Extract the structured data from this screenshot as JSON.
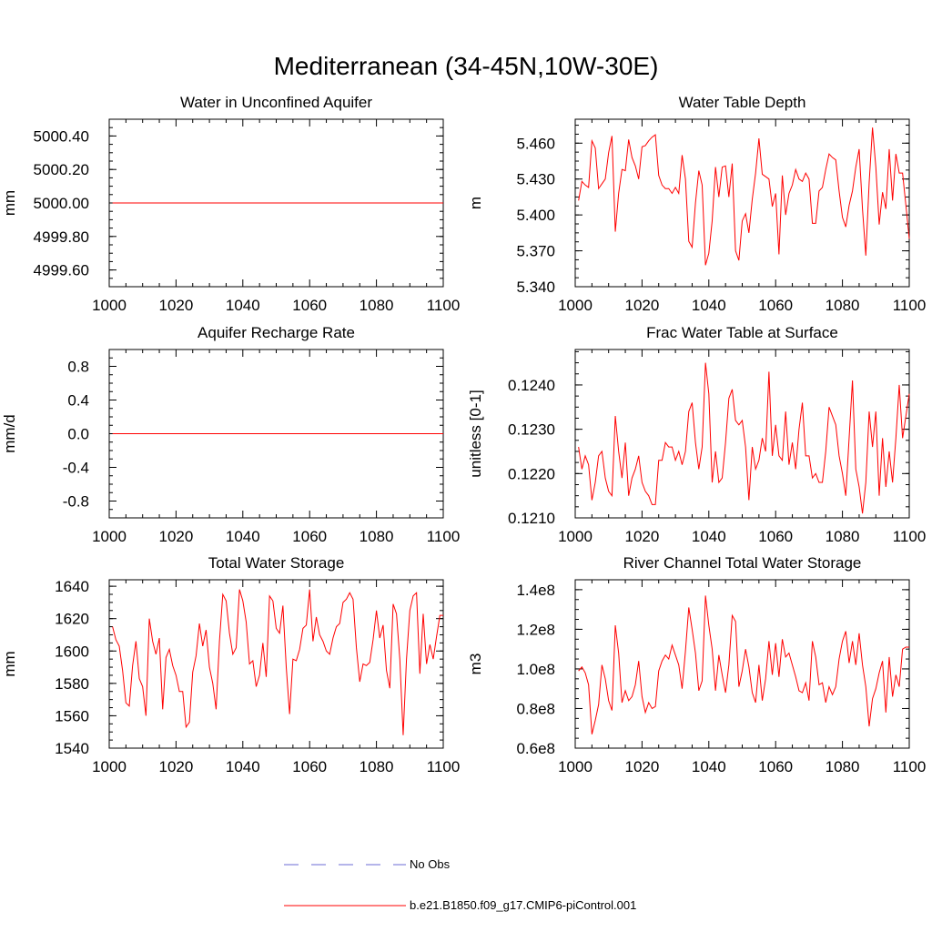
{
  "figure_title": "Mediterranean (34-45N,10W-30E)",
  "legend": {
    "entries": [
      {
        "label": "No Obs",
        "color": "#6b6bd6",
        "style": "dashed"
      },
      {
        "label": "b.e21.B1850.f09_g17.CMIP6-piControl.001",
        "color": "#ff0000",
        "style": "solid"
      }
    ]
  },
  "chart_data": [
    {
      "type": "line",
      "title": "Water in Unconfined Aquifer",
      "ylabel": "mm",
      "xlim": [
        1000,
        1100
      ],
      "ylim": [
        4999.5,
        5000.5
      ],
      "xticks": [
        1000,
        1020,
        1040,
        1060,
        1080,
        1100
      ],
      "yticks": [
        4999.6,
        4999.8,
        5000.0,
        5000.2,
        5000.4
      ],
      "ytick_labels": [
        "4999.60",
        "4999.80",
        "5000.00",
        "5000.20",
        "5000.40"
      ],
      "x_start": 1001,
      "x_step": 1,
      "series": [
        {
          "color": "#ff0000",
          "values": [
            5000,
            5000,
            5000,
            5000,
            5000,
            5000,
            5000,
            5000,
            5000,
            5000,
            5000,
            5000,
            5000,
            5000,
            5000,
            5000,
            5000,
            5000,
            5000,
            5000,
            5000,
            5000,
            5000,
            5000,
            5000,
            5000,
            5000,
            5000,
            5000,
            5000,
            5000,
            5000,
            5000,
            5000,
            5000,
            5000,
            5000,
            5000,
            5000,
            5000,
            5000,
            5000,
            5000,
            5000,
            5000,
            5000,
            5000,
            5000,
            5000,
            5000,
            5000,
            5000,
            5000,
            5000,
            5000,
            5000,
            5000,
            5000,
            5000,
            5000,
            5000,
            5000,
            5000,
            5000,
            5000,
            5000,
            5000,
            5000,
            5000,
            5000,
            5000,
            5000,
            5000,
            5000,
            5000,
            5000,
            5000,
            5000,
            5000,
            5000,
            5000,
            5000,
            5000,
            5000,
            5000,
            5000,
            5000,
            5000,
            5000,
            5000,
            5000,
            5000,
            5000,
            5000,
            5000,
            5000,
            5000,
            5000,
            5000,
            5000
          ]
        }
      ]
    },
    {
      "type": "line",
      "title": "Water Table Depth",
      "ylabel": "m",
      "xlim": [
        1000,
        1100
      ],
      "ylim": [
        5.34,
        5.48
      ],
      "xticks": [
        1000,
        1020,
        1040,
        1060,
        1080,
        1100
      ],
      "yticks": [
        5.34,
        5.37,
        5.4,
        5.43,
        5.46
      ],
      "ytick_labels": [
        "5.340",
        "5.370",
        "5.400",
        "5.430",
        "5.460"
      ],
      "x_start": 1001,
      "x_step": 1,
      "series": [
        {
          "color": "#ff0000",
          "values": [
            5.412,
            5.428,
            5.425,
            5.423,
            5.462,
            5.456,
            5.422,
            5.426,
            5.43,
            5.452,
            5.466,
            5.386,
            5.418,
            5.438,
            5.437,
            5.463,
            5.448,
            5.441,
            5.43,
            5.457,
            5.458,
            5.462,
            5.465,
            5.467,
            5.433,
            5.425,
            5.422,
            5.422,
            5.418,
            5.423,
            5.418,
            5.45,
            5.43,
            5.378,
            5.373,
            5.41,
            5.437,
            5.425,
            5.358,
            5.368,
            5.395,
            5.44,
            5.415,
            5.44,
            5.441,
            5.415,
            5.443,
            5.37,
            5.362,
            5.395,
            5.401,
            5.385,
            5.413,
            5.435,
            5.464,
            5.434,
            5.432,
            5.43,
            5.407,
            5.418,
            5.367,
            5.433,
            5.4,
            5.418,
            5.425,
            5.438,
            5.43,
            5.428,
            5.435,
            5.43,
            5.393,
            5.393,
            5.42,
            5.423,
            5.438,
            5.451,
            5.448,
            5.446,
            5.42,
            5.398,
            5.39,
            5.408,
            5.42,
            5.44,
            5.455,
            5.405,
            5.366,
            5.427,
            5.473,
            5.44,
            5.392,
            5.419,
            5.405,
            5.455,
            5.412,
            5.451,
            5.435,
            5.435,
            5.408,
            5.38
          ]
        }
      ]
    },
    {
      "type": "line",
      "title": "Aquifer Recharge Rate",
      "ylabel": "mm/d",
      "xlim": [
        1000,
        1100
      ],
      "ylim": [
        -1.0,
        1.0
      ],
      "xticks": [
        1000,
        1020,
        1040,
        1060,
        1080,
        1100
      ],
      "yticks": [
        -0.8,
        -0.4,
        0.0,
        0.4,
        0.8
      ],
      "ytick_labels": [
        "-0.8",
        "-0.4",
        "0.0",
        "0.4",
        "0.8"
      ],
      "x_start": 1001,
      "x_step": 1,
      "series": [
        {
          "color": "#ff0000",
          "values": [
            0,
            0,
            0,
            0,
            0,
            0,
            0,
            0,
            0,
            0,
            0,
            0,
            0,
            0,
            0,
            0,
            0,
            0,
            0,
            0,
            0,
            0,
            0,
            0,
            0,
            0,
            0,
            0,
            0,
            0,
            0,
            0,
            0,
            0,
            0,
            0,
            0,
            0,
            0,
            0,
            0,
            0,
            0,
            0,
            0,
            0,
            0,
            0,
            0,
            0,
            0,
            0,
            0,
            0,
            0,
            0,
            0,
            0,
            0,
            0,
            0,
            0,
            0,
            0,
            0,
            0,
            0,
            0,
            0,
            0,
            0,
            0,
            0,
            0,
            0,
            0,
            0,
            0,
            0,
            0,
            0,
            0,
            0,
            0,
            0,
            0,
            0,
            0,
            0,
            0,
            0,
            0,
            0,
            0,
            0,
            0,
            0,
            0,
            0,
            0
          ]
        }
      ]
    },
    {
      "type": "line",
      "title": "Frac Water Table at Surface",
      "ylabel": "unitless [0-1]",
      "xlim": [
        1000,
        1100
      ],
      "ylim": [
        0.121,
        0.1248
      ],
      "xticks": [
        1000,
        1020,
        1040,
        1060,
        1080,
        1100
      ],
      "yticks": [
        0.121,
        0.122,
        0.123,
        0.124
      ],
      "ytick_labels": [
        "0.1210",
        "0.1220",
        "0.1230",
        "0.1240"
      ],
      "x_start": 1001,
      "x_step": 1,
      "series": [
        {
          "color": "#ff0000",
          "values": [
            0.1226,
            0.1221,
            0.1224,
            0.1222,
            0.1214,
            0.1218,
            0.1224,
            0.1225,
            0.1219,
            0.1216,
            0.1215,
            0.1233,
            0.1225,
            0.1219,
            0.1227,
            0.1215,
            0.1219,
            0.1221,
            0.1224,
            0.1218,
            0.1216,
            0.1215,
            0.1213,
            0.1213,
            0.1223,
            0.1223,
            0.1227,
            0.1226,
            0.1226,
            0.1223,
            0.1225,
            0.1222,
            0.1225,
            0.1234,
            0.1236,
            0.1227,
            0.1221,
            0.1226,
            0.1245,
            0.1238,
            0.1218,
            0.1225,
            0.1218,
            0.1219,
            0.1227,
            0.1237,
            0.1239,
            0.1232,
            0.1231,
            0.1232,
            0.1226,
            0.1214,
            0.1226,
            0.1221,
            0.1223,
            0.1228,
            0.1225,
            0.1243,
            0.1224,
            0.1231,
            0.1224,
            0.1223,
            0.1234,
            0.1222,
            0.1227,
            0.1221,
            0.123,
            0.1236,
            0.1224,
            0.1224,
            0.1219,
            0.122,
            0.1218,
            0.1218,
            0.1225,
            0.1235,
            0.1233,
            0.1231,
            0.1224,
            0.122,
            0.1215,
            0.1228,
            0.1241,
            0.1221,
            0.1217,
            0.1211,
            0.1218,
            0.1234,
            0.1226,
            0.1234,
            0.1215,
            0.1228,
            0.1217,
            0.1225,
            0.1218,
            0.1228,
            0.124,
            0.1228,
            0.1233,
            0.1238
          ]
        }
      ]
    },
    {
      "type": "line",
      "title": "Total Water Storage",
      "ylabel": "mm",
      "xlim": [
        1000,
        1100
      ],
      "ylim": [
        1540,
        1644
      ],
      "xticks": [
        1000,
        1020,
        1040,
        1060,
        1080,
        1100
      ],
      "yticks": [
        1540,
        1560,
        1580,
        1600,
        1620,
        1640
      ],
      "ytick_labels": [
        "1540",
        "1560",
        "1580",
        "1600",
        "1620",
        "1640"
      ],
      "x_start": 1001,
      "x_step": 1,
      "series": [
        {
          "color": "#ff0000",
          "values": [
            1615,
            1607,
            1603,
            1588,
            1568,
            1566,
            1591,
            1606,
            1583,
            1578,
            1560,
            1620,
            1606,
            1598,
            1608,
            1564,
            1596,
            1601,
            1591,
            1585,
            1575,
            1575,
            1553,
            1556,
            1587,
            1597,
            1617,
            1603,
            1613,
            1590,
            1580,
            1564,
            1606,
            1635,
            1631,
            1611,
            1598,
            1602,
            1638,
            1631,
            1618,
            1592,
            1594,
            1578,
            1585,
            1605,
            1584,
            1634,
            1631,
            1614,
            1611,
            1628,
            1590,
            1561,
            1595,
            1594,
            1601,
            1614,
            1616,
            1638,
            1606,
            1621,
            1610,
            1606,
            1600,
            1598,
            1608,
            1615,
            1617,
            1630,
            1632,
            1636,
            1632,
            1602,
            1581,
            1592,
            1591,
            1593,
            1607,
            1625,
            1608,
            1616,
            1588,
            1577,
            1629,
            1623,
            1595,
            1548,
            1595,
            1625,
            1634,
            1636,
            1586,
            1623,
            1592,
            1604,
            1595,
            1609,
            1622,
            1622
          ]
        }
      ]
    },
    {
      "type": "line",
      "title": "River Channel Total Water Storage",
      "ylabel": "m3",
      "xlim": [
        1000,
        1100
      ],
      "ylim": [
        60000000.0,
        145000000.0
      ],
      "xticks": [
        1000,
        1020,
        1040,
        1060,
        1080,
        1100
      ],
      "yticks": [
        60000000.0,
        80000000.0,
        100000000.0,
        120000000.0,
        140000000.0
      ],
      "ytick_labels": [
        "0.6e8",
        "0.8e8",
        "1.0e8",
        "1.2e8",
        "1.4e8"
      ],
      "x_start": 1001,
      "x_step": 1,
      "series": [
        {
          "color": "#ff0000",
          "values": [
            99000000.0,
            101000000.0,
            98000000.0,
            92000000.0,
            67000000.0,
            74000000.0,
            82000000.0,
            102000000.0,
            95000000.0,
            84000000.0,
            79000000.0,
            122000000.0,
            108000000.0,
            83000000.0,
            89000000.0,
            84000000.0,
            86000000.0,
            92000000.0,
            104000000.0,
            86000000.0,
            78000000.0,
            83000000.0,
            80000000.0,
            81000000.0,
            99000000.0,
            104000000.0,
            107000000.0,
            105000000.0,
            112000000.0,
            107000000.0,
            102000000.0,
            90000000.0,
            109000000.0,
            131000000.0,
            120000000.0,
            108000000.0,
            89000000.0,
            94000000.0,
            137000000.0,
            122000000.0,
            110000000.0,
            89000000.0,
            107000000.0,
            97000000.0,
            88000000.0,
            102000000.0,
            127000000.0,
            124000000.0,
            91000000.0,
            99000000.0,
            110000000.0,
            101000000.0,
            88000000.0,
            83000000.0,
            102000000.0,
            84000000.0,
            95000000.0,
            114000000.0,
            97000000.0,
            113000000.0,
            96000000.0,
            115000000.0,
            106000000.0,
            108000000.0,
            102000000.0,
            96000000.0,
            89000000.0,
            88000000.0,
            93000000.0,
            84000000.0,
            114000000.0,
            106000000.0,
            92000000.0,
            93000000.0,
            83000000.0,
            91000000.0,
            87000000.0,
            91000000.0,
            105000000.0,
            114000000.0,
            119000000.0,
            103000000.0,
            114000000.0,
            102000000.0,
            118000000.0,
            102000000.0,
            91000000.0,
            71000000.0,
            85000000.0,
            90000000.0,
            98000000.0,
            104000000.0,
            78000000.0,
            106000000.0,
            86000000.0,
            97000000.0,
            91000000.0,
            110000000.0,
            111000000.0,
            111000000.0
          ]
        }
      ]
    }
  ]
}
